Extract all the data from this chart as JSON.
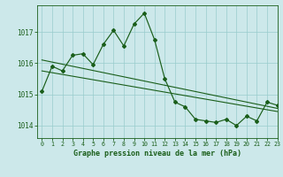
{
  "background_color": "#cce8ea",
  "grid_color": "#99cccc",
  "line_color": "#1a5e1a",
  "marker_color": "#1a5e1a",
  "title": "Graphe pression niveau de la mer (hPa)",
  "xlim": [
    -0.5,
    23
  ],
  "ylim": [
    1013.6,
    1017.85
  ],
  "yticks": [
    1014,
    1015,
    1016,
    1017
  ],
  "xticks": [
    0,
    1,
    2,
    3,
    4,
    5,
    6,
    7,
    8,
    9,
    10,
    11,
    12,
    13,
    14,
    15,
    16,
    17,
    18,
    19,
    20,
    21,
    22,
    23
  ],
  "series1_x": [
    0,
    1,
    2,
    3,
    4,
    5,
    6,
    7,
    8,
    9,
    10,
    11,
    12,
    13,
    14,
    15,
    16,
    17,
    18,
    19,
    20,
    21,
    22,
    23
  ],
  "series1_y": [
    1015.1,
    1015.9,
    1015.75,
    1016.25,
    1016.3,
    1015.95,
    1016.6,
    1017.05,
    1016.55,
    1017.25,
    1017.6,
    1016.75,
    1015.5,
    1014.75,
    1014.6,
    1014.2,
    1014.15,
    1014.1,
    1014.2,
    1014.0,
    1014.3,
    1014.15,
    1014.75,
    1014.65
  ],
  "series2_x": [
    0,
    23
  ],
  "series2_y": [
    1016.1,
    1014.55
  ],
  "series3_x": [
    0,
    23
  ],
  "series3_y": [
    1015.75,
    1014.45
  ]
}
